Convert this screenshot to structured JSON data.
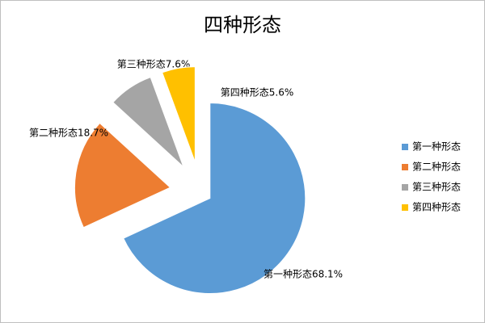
{
  "chart_data": {
    "type": "pie",
    "title": "四种形态",
    "categories": [
      "第一种形态",
      "第二种形态",
      "第三种形态",
      "第四种形态"
    ],
    "values": [
      68.1,
      18.7,
      7.6,
      5.6
    ],
    "value_labels": [
      "第一种形态68.1%",
      "第二种形态18.7%",
      "第三种形态7.6%",
      "第四种形态5.6%"
    ],
    "colors": [
      "#5b9bd5",
      "#ed7d31",
      "#a5a5a5",
      "#ffc000"
    ],
    "legend": "right"
  }
}
